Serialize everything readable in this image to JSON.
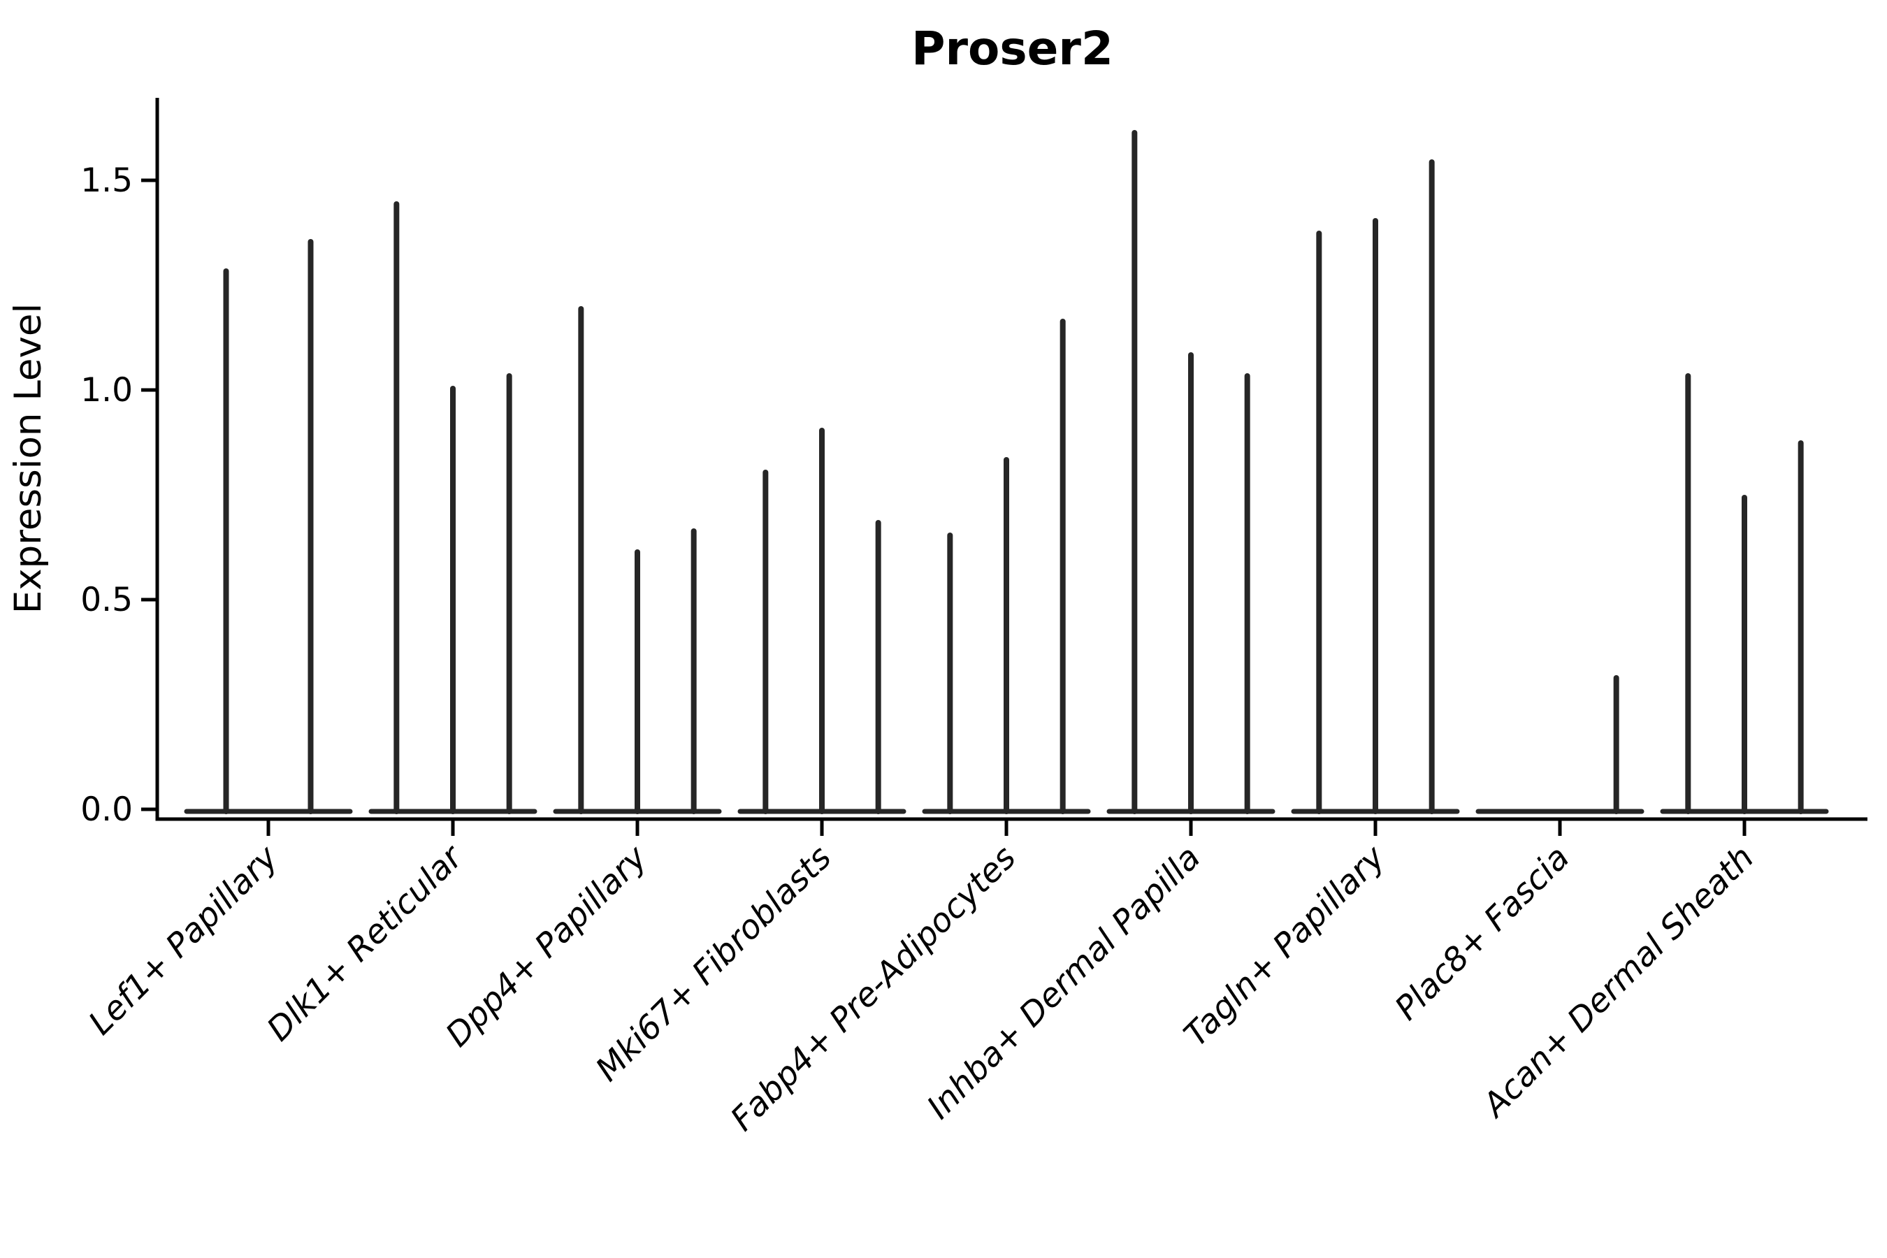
{
  "chart_data": {
    "type": "violin",
    "title": "Proser2",
    "ylabel": "Expression Level",
    "xlabel": "",
    "ylim": [
      0,
      1.7
    ],
    "yticks": [
      0.0,
      0.5,
      1.0,
      1.5
    ],
    "ytick_labels": [
      "0.0",
      "0.5",
      "1.0",
      "1.5"
    ],
    "legend": "none",
    "grid": false,
    "categories": [
      "Lef1+ Papillary",
      "Dlk1+ Reticular",
      "Dpp4+ Papillary",
      "Mki67+ Fibroblasts",
      "Fabp4+ Pre-Adipocytes",
      "Inhba+ Dermal Papilla",
      "Tagln+ Papillary",
      "Plac8+ Fascia",
      "Acan+ Dermal Sheath"
    ],
    "groups": [
      {
        "label": "Lef1+ Papillary",
        "violins": [
          1.29,
          1.36
        ]
      },
      {
        "label": "Dlk1+ Reticular",
        "violins": [
          1.45,
          1.01,
          1.04
        ]
      },
      {
        "label": "Dpp4+ Papillary",
        "violins": [
          1.2,
          0.62,
          0.67
        ]
      },
      {
        "label": "Mki67+ Fibroblasts",
        "violins": [
          0.81,
          0.91,
          0.69
        ]
      },
      {
        "label": "Fabp4+ Pre-Adipocytes",
        "violins": [
          0.66,
          0.84,
          1.17
        ]
      },
      {
        "label": "Inhba+ Dermal Papilla",
        "violins": [
          1.62,
          1.09,
          1.04
        ]
      },
      {
        "label": "Tagln+ Papillary",
        "violins": [
          1.38,
          1.41,
          1.55
        ]
      },
      {
        "label": "Plac8+ Fascia",
        "violins": [
          0.0,
          0.0,
          0.32
        ]
      },
      {
        "label": "Acan+ Dermal Sheath",
        "violins": [
          1.04,
          0.75,
          0.88
        ]
      }
    ],
    "colors": {
      "violin_line": "#262626",
      "axis_line": "#000000",
      "text": "#000000",
      "background": "#ffffff"
    }
  }
}
